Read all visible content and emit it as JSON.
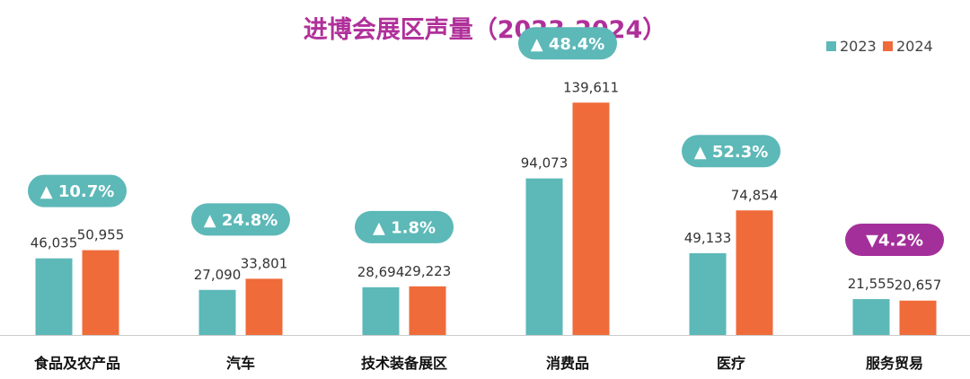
{
  "chart_data": {
    "type": "bar",
    "title": "进博会展区声量（2023-2024）",
    "xlabel": "",
    "ylabel": "",
    "ylim": [
      0,
      150000
    ],
    "grid": false,
    "legend_position": "top-right",
    "categories": [
      "食品及农产品",
      "汽车",
      "技术装备展区",
      "消费品",
      "医疗",
      "服务贸易"
    ],
    "series": [
      {
        "name": "2023",
        "color": "#5db8b8",
        "values": [
          46035,
          27090,
          28694,
          94073,
          49133,
          21555
        ],
        "labels": [
          "46,035",
          "27,090",
          "28,694",
          "94,073",
          "49,133",
          "21,555"
        ]
      },
      {
        "name": "2024",
        "color": "#ef6b3a",
        "values": [
          50955,
          33801,
          29223,
          139611,
          74854,
          20657
        ],
        "labels": [
          "50,955",
          "33,801",
          "29,223",
          "139,611",
          "74,854",
          "20,657"
        ]
      }
    ],
    "annotations": [
      {
        "category": "食品及农产品",
        "text": "▲ 10.7%",
        "direction": "up"
      },
      {
        "category": "汽车",
        "text": "▲ 24.8%",
        "direction": "up"
      },
      {
        "category": "技术装备展区",
        "text": "▲ 1.8%",
        "direction": "up"
      },
      {
        "category": "消费品",
        "text": "▲ 48.4%",
        "direction": "up"
      },
      {
        "category": "医疗",
        "text": "▲ 52.3%",
        "direction": "up"
      },
      {
        "category": "服务贸易",
        "text": "▼4.2%",
        "direction": "down"
      }
    ],
    "colors": {
      "up_badge": "#5db8b8",
      "down_badge": "#a3309a",
      "title": "#b0309a",
      "axis": "#cccccc"
    }
  }
}
